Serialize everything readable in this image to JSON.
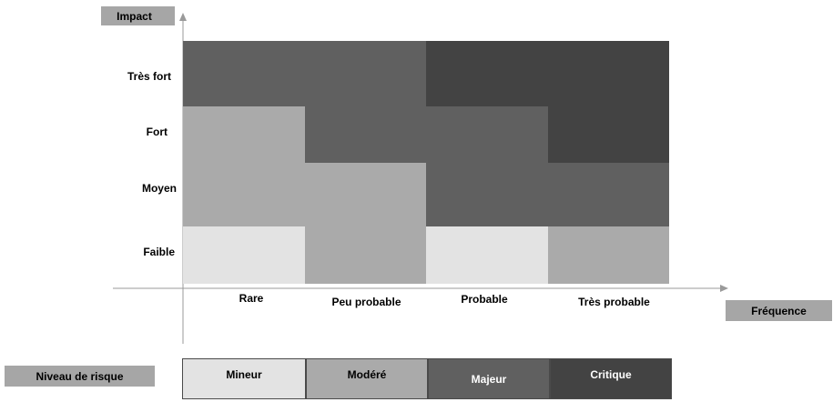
{
  "axis": {
    "y_title": "Impact",
    "x_title": "Fréquence"
  },
  "impact_levels": [
    "Très fort",
    "Fort",
    "Moyen",
    "Faible"
  ],
  "frequency_levels": [
    "Rare",
    "Peu probable",
    "Probable",
    "Très probable"
  ],
  "legend": {
    "title": "Niveau de risque",
    "items": [
      {
        "label": "Mineur",
        "color": "#e3e3e3",
        "text_color": "#000000"
      },
      {
        "label": "Modéré",
        "color": "#aaaaaa",
        "text_color": "#000000"
      },
      {
        "label": "Majeur",
        "color": "#606060",
        "text_color": "#ffffff"
      },
      {
        "label": "Critique",
        "color": "#434343",
        "text_color": "#ffffff"
      }
    ]
  },
  "matrix": {
    "rows": [
      {
        "impact": "Très fort",
        "risk": [
          "Majeur",
          "Majeur",
          "Critique",
          "Critique"
        ]
      },
      {
        "impact": "Fort",
        "risk": [
          "Modéré",
          "Majeur",
          "Majeur",
          "Critique"
        ]
      },
      {
        "impact": "Moyen",
        "risk": [
          "Modéré",
          "Modéré",
          "Majeur",
          "Majeur"
        ]
      },
      {
        "impact": "Faible",
        "risk": [
          "Mineur",
          "Modéré",
          "Mineur",
          "Modéré"
        ]
      }
    ]
  }
}
